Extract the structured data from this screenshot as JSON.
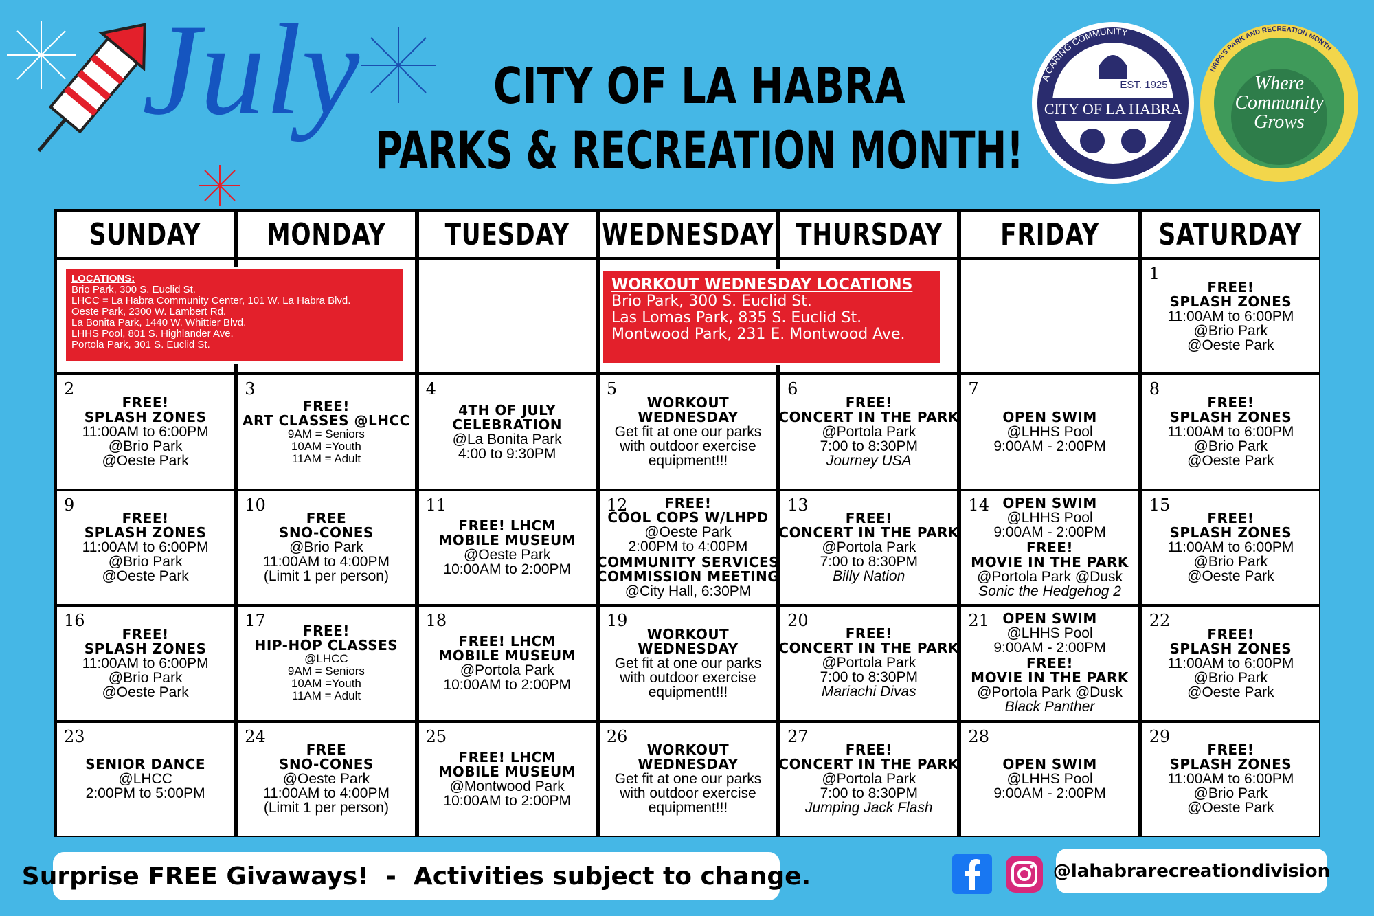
{
  "header": {
    "month": "July",
    "title_lines": [
      "CITY OF LA HABRA",
      "PARKS & RECREATION MONTH!"
    ]
  },
  "logos": {
    "city": {
      "arc": "A CARING COMMUNITY",
      "est": "EST. 1925",
      "name": "CITY OF LA HABRA"
    },
    "nrpa": {
      "arc": "NRPA'S PARK AND RECREATION MONTH",
      "slogan": [
        "Where",
        "Community",
        "Grows"
      ]
    }
  },
  "days": [
    "SUNDAY",
    "MONDAY",
    "TUESDAY",
    "WEDNESDAY",
    "THURSDAY",
    "FRIDAY",
    "SATURDAY"
  ],
  "locations": {
    "heading": "LOCATIONS:",
    "items": [
      "Brio Park, 300 S. Euclid St.",
      "LHCC = La Habra Community Center, 101 W. La Habra Blvd.",
      "Oeste Park, 2300 W. Lambert Rd.",
      "La Bonita Park, 1440 W. Whittier Blvd.",
      "LHHS Pool, 801 S. Highlander Ave.",
      "Portola Park, 301 S. Euclid St."
    ]
  },
  "workout_locations": {
    "heading": "WORKOUT WEDNESDAY LOCATIONS",
    "items": [
      "Brio Park, 300 S. Euclid St.",
      "Las Lomas Park, 835 S. Euclid St.",
      "Montwood Park, 231 E. Montwood Ave."
    ]
  },
  "weeks": [
    [
      null,
      null,
      null,
      null,
      null,
      null,
      {
        "date": 1,
        "events": [
          {
            "heading": [
              "FREE!",
              "SPLASH ZONES"
            ],
            "details": [
              "11:00AM to 6:00PM",
              "@Brio Park",
              "@Oeste Park"
            ]
          }
        ]
      }
    ],
    [
      {
        "date": 2,
        "events": [
          {
            "heading": [
              "FREE!",
              "SPLASH ZONES"
            ],
            "details": [
              "11:00AM to 6:00PM",
              "@Brio Park",
              "@Oeste Park"
            ]
          }
        ]
      },
      {
        "date": 3,
        "events": [
          {
            "heading": [
              "FREE!",
              "ART CLASSES @LHCC"
            ],
            "small": [
              "9AM = Seniors",
              "10AM =Youth",
              "11AM = Adult"
            ]
          }
        ]
      },
      {
        "date": 4,
        "events": [
          {
            "heading": [
              "4TH OF JULY",
              "CELEBRATION"
            ],
            "details": [
              "@La Bonita Park",
              "4:00 to 9:30PM"
            ]
          }
        ]
      },
      {
        "date": 5,
        "events": [
          {
            "heading": [
              "WORKOUT",
              "WEDNESDAY"
            ],
            "details": [
              "Get fit at one our parks",
              "with outdoor exercise",
              "equipment!!!"
            ]
          }
        ]
      },
      {
        "date": 6,
        "events": [
          {
            "heading": [
              "FREE!",
              "CONCERT IN THE PARK"
            ],
            "details": [
              "@Portola Park",
              "7:00 to 8:30PM"
            ],
            "performer": "Journey USA"
          }
        ]
      },
      {
        "date": 7,
        "events": [
          {
            "heading": [
              "OPEN SWIM"
            ],
            "details": [
              "@LHHS Pool",
              "9:00AM - 2:00PM"
            ]
          }
        ]
      },
      {
        "date": 8,
        "events": [
          {
            "heading": [
              "FREE!",
              "SPLASH ZONES"
            ],
            "details": [
              "11:00AM to 6:00PM",
              "@Brio Park",
              "@Oeste Park"
            ]
          }
        ]
      }
    ],
    [
      {
        "date": 9,
        "events": [
          {
            "heading": [
              "FREE!",
              "SPLASH ZONES"
            ],
            "details": [
              "11:00AM to 6:00PM",
              "@Brio Park",
              "@Oeste Park"
            ]
          }
        ]
      },
      {
        "date": 10,
        "events": [
          {
            "heading": [
              "FREE",
              "SNO-CONES"
            ],
            "details": [
              "@Brio Park",
              "11:00AM to 4:00PM",
              "(Limit 1 per person)"
            ]
          }
        ]
      },
      {
        "date": 11,
        "events": [
          {
            "heading": [
              "FREE! LHCM",
              "MOBILE MUSEUM"
            ],
            "details": [
              "@Oeste Park",
              "10:00AM to 2:00PM"
            ]
          }
        ]
      },
      {
        "date": 12,
        "events": [
          {
            "heading": [
              "FREE!",
              "COOL COPS W/LHPD"
            ],
            "details": [
              "@Oeste Park",
              "2:00PM to 4:00PM"
            ]
          },
          {
            "heading": [
              "COMMUNITY SERVICES",
              "COMMISSION MEETING"
            ],
            "details": [
              "@City Hall, 6:30PM"
            ]
          }
        ]
      },
      {
        "date": 13,
        "events": [
          {
            "heading": [
              "FREE!",
              "CONCERT IN THE PARK"
            ],
            "details": [
              "@Portola Park",
              "7:00 to 8:30PM"
            ],
            "performer": "Billy Nation"
          }
        ]
      },
      {
        "date": 14,
        "events": [
          {
            "heading": [
              "OPEN SWIM"
            ],
            "details": [
              "@LHHS Pool",
              "9:00AM - 2:00PM"
            ]
          },
          {
            "heading": [
              "FREE!",
              "MOVIE IN THE PARK"
            ],
            "details": [
              "@Portola Park @Dusk"
            ],
            "performer": "Sonic the Hedgehog 2"
          }
        ]
      },
      {
        "date": 15,
        "events": [
          {
            "heading": [
              "FREE!",
              "SPLASH ZONES"
            ],
            "details": [
              "11:00AM to 6:00PM",
              "@Brio Park",
              "@Oeste Park"
            ]
          }
        ]
      }
    ],
    [
      {
        "date": 16,
        "events": [
          {
            "heading": [
              "FREE!",
              "SPLASH ZONES"
            ],
            "details": [
              "11:00AM to 6:00PM",
              "@Brio Park",
              "@Oeste Park"
            ]
          }
        ]
      },
      {
        "date": 17,
        "events": [
          {
            "heading": [
              "FREE!",
              "HIP-HOP CLASSES"
            ],
            "small": [
              "@LHCC",
              "9AM = Seniors",
              "10AM =Youth",
              "11AM = Adult"
            ]
          }
        ]
      },
      {
        "date": 18,
        "events": [
          {
            "heading": [
              "FREE! LHCM",
              "MOBILE MUSEUM"
            ],
            "details": [
              "@Portola Park",
              "10:00AM to 2:00PM"
            ]
          }
        ]
      },
      {
        "date": 19,
        "events": [
          {
            "heading": [
              "WORKOUT",
              "WEDNESDAY"
            ],
            "details": [
              "Get fit at one our parks",
              "with outdoor exercise",
              "equipment!!!"
            ]
          }
        ]
      },
      {
        "date": 20,
        "events": [
          {
            "heading": [
              "FREE!",
              "CONCERT IN THE PARK"
            ],
            "details": [
              "@Portola Park",
              "7:00 to 8:30PM"
            ],
            "performer": "Mariachi Divas"
          }
        ]
      },
      {
        "date": 21,
        "events": [
          {
            "heading": [
              "OPEN SWIM"
            ],
            "details": [
              "@LHHS Pool",
              "9:00AM - 2:00PM"
            ]
          },
          {
            "heading": [
              "FREE!",
              "MOVIE IN THE PARK"
            ],
            "details": [
              "@Portola Park @Dusk"
            ],
            "performer": "Black Panther"
          }
        ]
      },
      {
        "date": 22,
        "events": [
          {
            "heading": [
              "FREE!",
              "SPLASH ZONES"
            ],
            "details": [
              "11:00AM to 6:00PM",
              "@Brio Park",
              "@Oeste Park"
            ]
          }
        ]
      }
    ],
    [
      {
        "date": 23,
        "events": [
          {
            "heading": [
              "SENIOR DANCE"
            ],
            "details": [
              "@LHCC",
              "2:00PM to 5:00PM"
            ]
          }
        ]
      },
      {
        "date": 24,
        "events": [
          {
            "heading": [
              "FREE",
              "SNO-CONES"
            ],
            "details": [
              "@Oeste Park",
              "11:00AM to 4:00PM",
              "(Limit 1 per person)"
            ]
          }
        ]
      },
      {
        "date": 25,
        "events": [
          {
            "heading": [
              "FREE! LHCM",
              "MOBILE MUSEUM"
            ],
            "details": [
              "@Montwood Park",
              "10:00AM to 2:00PM"
            ]
          }
        ]
      },
      {
        "date": 26,
        "events": [
          {
            "heading": [
              "WORKOUT",
              "WEDNESDAY"
            ],
            "details": [
              "Get fit at one our parks",
              "with outdoor exercise",
              "equipment!!!"
            ]
          }
        ]
      },
      {
        "date": 27,
        "events": [
          {
            "heading": [
              "FREE!",
              "CONCERT IN THE PARK"
            ],
            "details": [
              "@Portola Park",
              "7:00 to 8:30PM"
            ],
            "performer": "Jumping Jack Flash"
          }
        ]
      },
      {
        "date": 28,
        "events": [
          {
            "heading": [
              "OPEN SWIM"
            ],
            "details": [
              "@LHHS Pool",
              "9:00AM - 2:00PM"
            ]
          }
        ]
      },
      {
        "date": 29,
        "events": [
          {
            "heading": [
              "FREE!",
              "SPLASH ZONES"
            ],
            "details": [
              "11:00AM to 6:00PM",
              "@Brio Park",
              "@Oeste Park"
            ]
          }
        ]
      }
    ]
  ],
  "footer": {
    "note": "Surprise FREE Givaways!  -  Activities subject to change.",
    "handle": "@lahabrarecreationdivision"
  }
}
